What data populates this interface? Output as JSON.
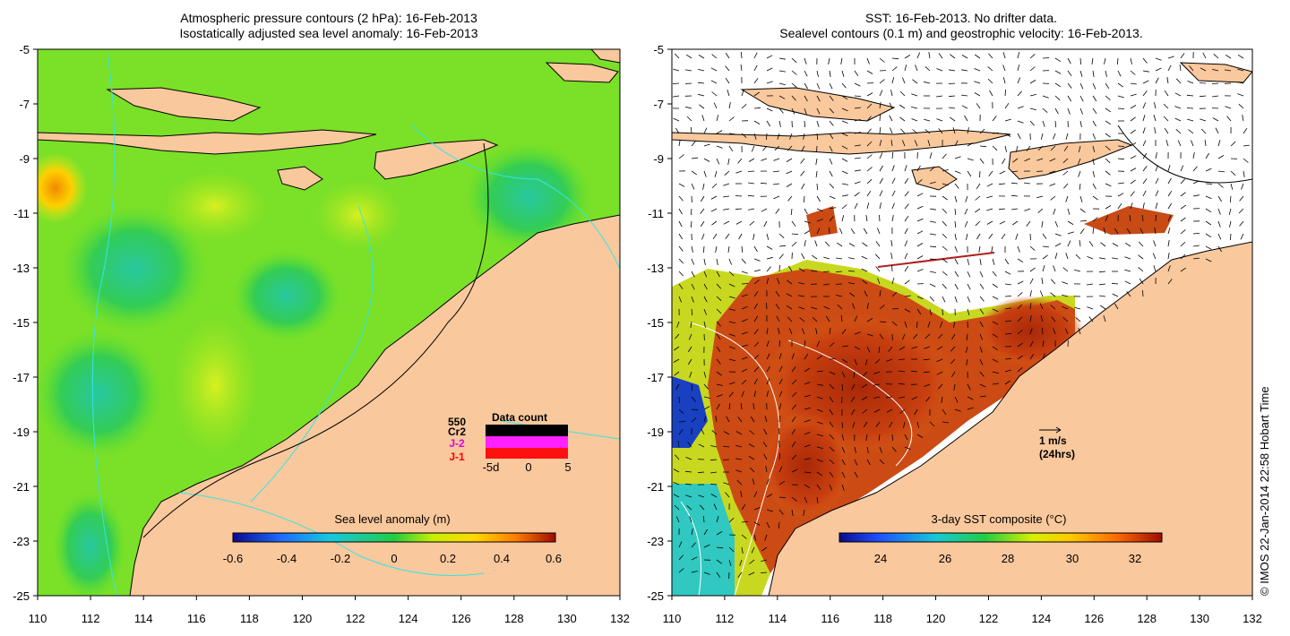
{
  "left_panel": {
    "title_line1": "Atmospheric pressure contours (2 hPa): 16-Feb-2013",
    "title_line2": "Isostatically adjusted sea level anomaly: 16-Feb-2013",
    "colorbar_label": "Sea level anomaly (m)",
    "colorbar_ticks": [
      "-0.6",
      "-0.4",
      "-0.2",
      "0",
      "0.2",
      "0.4",
      "0.6"
    ],
    "data_count": {
      "title": "Data count",
      "max_label": "550",
      "sat_labels": [
        {
          "text": "Cr2",
          "color": "#000000"
        },
        {
          "text": "J-2",
          "color": "#e000e0"
        },
        {
          "text": "J-1",
          "color": "#ff0000"
        }
      ],
      "axis_labels": [
        "-5d",
        "0",
        "5"
      ]
    }
  },
  "right_panel": {
    "title_line1": "SST: 16-Feb-2013. No drifter data.",
    "title_line2": "Sealevel contours (0.1 m) and geostrophic velocity: 16-Feb-2013.",
    "colorbar_label": "3-day SST composite (°C)",
    "colorbar_ticks": [
      "24",
      "26",
      "28",
      "30",
      "32"
    ],
    "velocity_scale": {
      "line1": "1 m/s",
      "line2": "(24hrs)"
    }
  },
  "x_ticks": [
    "110",
    "112",
    "114",
    "116",
    "118",
    "120",
    "122",
    "124",
    "126",
    "128",
    "130",
    "132"
  ],
  "y_ticks": [
    "-5",
    "-7",
    "-9",
    "-11",
    "-13",
    "-15",
    "-17",
    "-19",
    "-21",
    "-23",
    "-25"
  ],
  "credit": "© IMOS 22-Jan-2014 22:58 Hobart Time",
  "colors": {
    "land": "#f9c89c",
    "ocean_green": "#66dd22",
    "anomaly_high": "#ff9a00",
    "sst_hot": "#b02a08",
    "contour_cyan": "#33e6e6"
  }
}
